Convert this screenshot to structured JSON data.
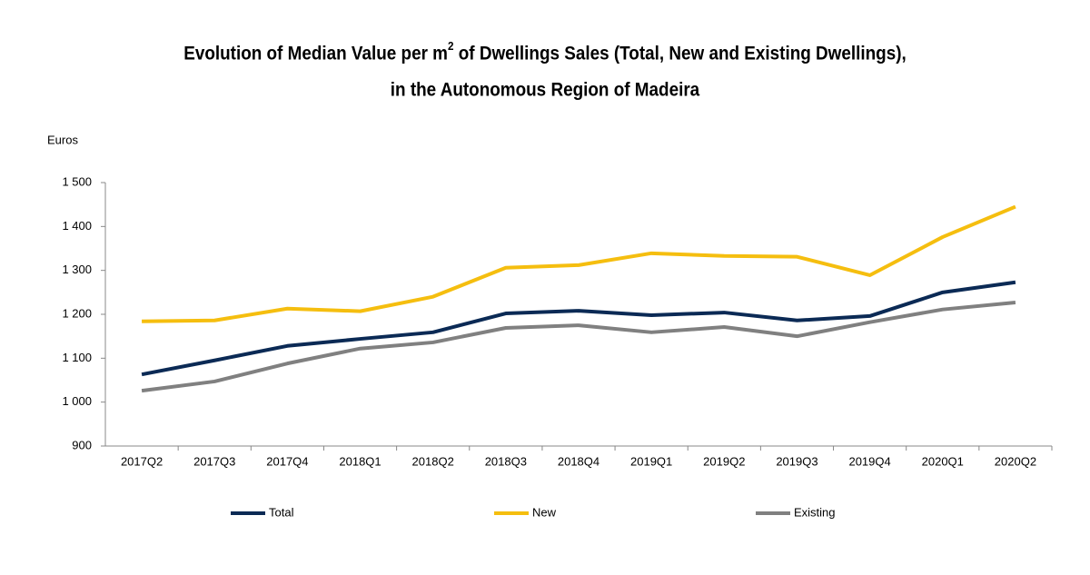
{
  "chart_data": {
    "type": "line",
    "title": [
      "Evolution of Median Value per m",
      "2",
      " of Dwellings Sales (Total, New and Existing Dwellings),",
      "in the Autonomous Region of Madeira"
    ],
    "y_label": "Euros",
    "categories": [
      "2017Q2",
      "2017Q3",
      "2017Q4",
      "2018Q1",
      "2018Q2",
      "2018Q3",
      "2018Q4",
      "2019Q1",
      "2019Q2",
      "2019Q3",
      "2019Q4",
      "2020Q1",
      "2020Q2"
    ],
    "series": [
      {
        "name": "Total",
        "color": "#0b2a55",
        "values": [
          1063,
          1095,
          1128,
          1144,
          1159,
          1202,
          1208,
          1198,
          1204,
          1186,
          1196,
          1250,
          1273
        ]
      },
      {
        "name": "New",
        "color": "#f5be0f",
        "values": [
          1184,
          1186,
          1213,
          1207,
          1240,
          1306,
          1312,
          1339,
          1333,
          1331,
          1289,
          1376,
          1445
        ]
      },
      {
        "name": "Existing",
        "color": "#808080",
        "values": [
          1026,
          1047,
          1088,
          1122,
          1136,
          1169,
          1175,
          1159,
          1171,
          1150,
          1182,
          1211,
          1227
        ]
      }
    ],
    "ylim": [
      900,
      1500
    ],
    "yticks": [
      900,
      {
        "value": 1000,
        "label": "1 000"
      },
      {
        "value": 1100,
        "label": "1 100"
      },
      {
        "value": 1200,
        "label": "1 200"
      },
      {
        "value": 1300,
        "label": "1 300"
      },
      {
        "value": 1400,
        "label": "1 400"
      },
      {
        "value": 1500,
        "label": "1 500"
      }
    ],
    "grid": false,
    "legend": "bottom"
  }
}
